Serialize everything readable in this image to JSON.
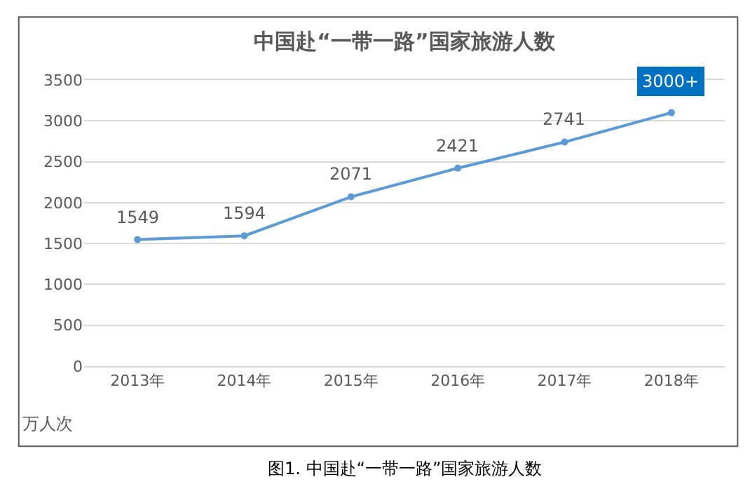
{
  "chart_data": {
    "type": "line",
    "title": "中国赴“一带一路”国家旅游人数",
    "ylabel": "万人次",
    "categories": [
      "2013年",
      "2014年",
      "2015年",
      "2016年",
      "2017年",
      "2018年"
    ],
    "series": [
      {
        "color": "#5b9bd5",
        "values": [
          1549,
          1594,
          2071,
          2421,
          2741,
          3100
        ],
        "value_labels": [
          "1549",
          "1594",
          "2071",
          "2421",
          "2741",
          "3000+"
        ]
      }
    ],
    "ylim": [
      0,
      3500
    ],
    "yticks": [
      0,
      500,
      1000,
      1500,
      2000,
      2500,
      3000,
      3500
    ],
    "grid": "y",
    "marker": "circle",
    "line_style": "solid",
    "annotations": [
      "图1. 中国赴“一带一路”国家旅游人数"
    ]
  }
}
